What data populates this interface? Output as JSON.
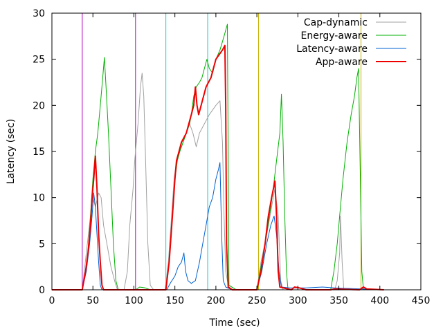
{
  "chart_data": {
    "type": "line",
    "xlabel": "Time (sec)",
    "ylabel": "Latency (sec)",
    "xlim": [
      0,
      450
    ],
    "ylim": [
      0,
      30
    ],
    "xticks": [
      "0",
      "50",
      "100",
      "150",
      "200",
      "250",
      "300",
      "350",
      "400",
      "450"
    ],
    "yticks": [
      "0",
      "5",
      "10",
      "15",
      "20",
      "25",
      "30"
    ],
    "grid": false,
    "legend_position": "top-right",
    "vertical_markers": [
      {
        "x": 37,
        "color": "#b000c0"
      },
      {
        "x": 102,
        "color": "#b000c0"
      },
      {
        "x": 139,
        "color": "#10c8d0"
      },
      {
        "x": 190,
        "color": "#10c8d0"
      },
      {
        "x": 252,
        "color": "#c8b000"
      },
      {
        "x": 377,
        "color": "#c8b000"
      }
    ],
    "series": [
      {
        "name": "Cap-dynamic",
        "color": "#a0a0a0",
        "width": 1,
        "points": [
          [
            0,
            0
          ],
          [
            37,
            0
          ],
          [
            42,
            4
          ],
          [
            47,
            8
          ],
          [
            50,
            10
          ],
          [
            53,
            9
          ],
          [
            57,
            10.5
          ],
          [
            60,
            10
          ],
          [
            63,
            7
          ],
          [
            67,
            5
          ],
          [
            72,
            2.5
          ],
          [
            77,
            0.8
          ],
          [
            80,
            0
          ],
          [
            88,
            0
          ],
          [
            92,
            2
          ],
          [
            95,
            7
          ],
          [
            99,
            11
          ],
          [
            101,
            14
          ],
          [
            103,
            16
          ],
          [
            105,
            18
          ],
          [
            108,
            22
          ],
          [
            110,
            23.5
          ],
          [
            112,
            21
          ],
          [
            114,
            15
          ],
          [
            117,
            5
          ],
          [
            120,
            0.5
          ],
          [
            124,
            0
          ],
          [
            138,
            0
          ],
          [
            142,
            3
          ],
          [
            146,
            8
          ],
          [
            149,
            12
          ],
          [
            152,
            14
          ],
          [
            156,
            15
          ],
          [
            160,
            16
          ],
          [
            164,
            17
          ],
          [
            168,
            18
          ],
          [
            172,
            17
          ],
          [
            176,
            15.5
          ],
          [
            180,
            17
          ],
          [
            186,
            18
          ],
          [
            192,
            19
          ],
          [
            200,
            20
          ],
          [
            205,
            20.5
          ],
          [
            208,
            16
          ],
          [
            210,
            8
          ],
          [
            212,
            2
          ],
          [
            215,
            0.5
          ],
          [
            225,
            0
          ],
          [
            250,
            0
          ],
          [
            255,
            3
          ],
          [
            262,
            6
          ],
          [
            268,
            9
          ],
          [
            272,
            11
          ],
          [
            276,
            8
          ],
          [
            279,
            1
          ],
          [
            282,
            0
          ],
          [
            345,
            0
          ],
          [
            348,
            1
          ],
          [
            351,
            4
          ],
          [
            352,
            8
          ],
          [
            354,
            3
          ],
          [
            356,
            0
          ],
          [
            405,
            0
          ]
        ]
      },
      {
        "name": "Energy-aware",
        "color": "#00b000",
        "width": 1,
        "points": [
          [
            0,
            0
          ],
          [
            37,
            0
          ],
          [
            41,
            2
          ],
          [
            44,
            4
          ],
          [
            47,
            8
          ],
          [
            50,
            12
          ],
          [
            53,
            15
          ],
          [
            56,
            17
          ],
          [
            59,
            20
          ],
          [
            62,
            23
          ],
          [
            64,
            25.2
          ],
          [
            66,
            22
          ],
          [
            69,
            17
          ],
          [
            72,
            11
          ],
          [
            75,
            5
          ],
          [
            78,
            1
          ],
          [
            81,
            0
          ],
          [
            102,
            0
          ],
          [
            107,
            0.3
          ],
          [
            114,
            0.2
          ],
          [
            120,
            0
          ],
          [
            139,
            0
          ],
          [
            143,
            3
          ],
          [
            147,
            8
          ],
          [
            150,
            12
          ],
          [
            153,
            14
          ],
          [
            156,
            15
          ],
          [
            160,
            16
          ],
          [
            164,
            17
          ],
          [
            168,
            18
          ],
          [
            170,
            19
          ],
          [
            173,
            21
          ],
          [
            176,
            22
          ],
          [
            180,
            22.5
          ],
          [
            183,
            23
          ],
          [
            186,
            24
          ],
          [
            189,
            25
          ],
          [
            192,
            24
          ],
          [
            196,
            23.5
          ],
          [
            200,
            25
          ],
          [
            205,
            26
          ],
          [
            210,
            27.5
          ],
          [
            214,
            28.8
          ],
          [
            216,
            0.5
          ],
          [
            225,
            0
          ],
          [
            250,
            0
          ],
          [
            256,
            3
          ],
          [
            262,
            6
          ],
          [
            267,
            9
          ],
          [
            270,
            11
          ],
          [
            274,
            14
          ],
          [
            278,
            17
          ],
          [
            280,
            21.2
          ],
          [
            282,
            16
          ],
          [
            284,
            8
          ],
          [
            286,
            2
          ],
          [
            288,
            0
          ],
          [
            340,
            0
          ],
          [
            344,
            2
          ],
          [
            348,
            5
          ],
          [
            351,
            8
          ],
          [
            355,
            12
          ],
          [
            360,
            16
          ],
          [
            365,
            19
          ],
          [
            369,
            21
          ],
          [
            372,
            23
          ],
          [
            374,
            24
          ],
          [
            376,
            13
          ],
          [
            378,
            2
          ],
          [
            380,
            0
          ],
          [
            405,
            0
          ]
        ]
      },
      {
        "name": "Latency-aware",
        "color": "#0060d0",
        "width": 1,
        "points": [
          [
            0,
            0
          ],
          [
            37,
            0
          ],
          [
            42,
            2
          ],
          [
            46,
            5
          ],
          [
            49,
            8
          ],
          [
            51,
            10.5
          ],
          [
            53,
            9
          ],
          [
            55,
            6
          ],
          [
            57,
            3
          ],
          [
            59,
            0.5
          ],
          [
            61,
            0
          ],
          [
            140,
            0
          ],
          [
            145,
            0.8
          ],
          [
            150,
            1.5
          ],
          [
            154,
            2.5
          ],
          [
            158,
            3
          ],
          [
            161,
            4
          ],
          [
            163,
            2
          ],
          [
            166,
            1
          ],
          [
            170,
            0.7
          ],
          [
            175,
            1
          ],
          [
            180,
            3
          ],
          [
            184,
            5
          ],
          [
            188,
            7
          ],
          [
            192,
            9
          ],
          [
            196,
            10
          ],
          [
            200,
            12
          ],
          [
            203,
            13
          ],
          [
            205,
            13.8
          ],
          [
            207,
            6
          ],
          [
            209,
            1
          ],
          [
            212,
            0.3
          ],
          [
            220,
            0
          ],
          [
            250,
            0
          ],
          [
            256,
            2
          ],
          [
            262,
            5
          ],
          [
            267,
            7
          ],
          [
            271,
            8
          ],
          [
            274,
            6
          ],
          [
            277,
            2
          ],
          [
            280,
            0.3
          ],
          [
            290,
            0.2
          ],
          [
            310,
            0.2
          ],
          [
            330,
            0.3
          ],
          [
            345,
            0.2
          ],
          [
            405,
            0
          ]
        ]
      },
      {
        "name": "App-aware",
        "color": "#ee0000",
        "width": 2,
        "points": [
          [
            0,
            0
          ],
          [
            37,
            0
          ],
          [
            41,
            2
          ],
          [
            44,
            4
          ],
          [
            47,
            7
          ],
          [
            49,
            10
          ],
          [
            51,
            12
          ],
          [
            53,
            14.5
          ],
          [
            55,
            11
          ],
          [
            57,
            6
          ],
          [
            59,
            3
          ],
          [
            61,
            0.5
          ],
          [
            63,
            0
          ],
          [
            139,
            0
          ],
          [
            143,
            3
          ],
          [
            147,
            8
          ],
          [
            150,
            12
          ],
          [
            152,
            14
          ],
          [
            155,
            15
          ],
          [
            158,
            16
          ],
          [
            161,
            16.5
          ],
          [
            164,
            17
          ],
          [
            167,
            18
          ],
          [
            170,
            19
          ],
          [
            173,
            20
          ],
          [
            175,
            22
          ],
          [
            177,
            20
          ],
          [
            179,
            19
          ],
          [
            182,
            20
          ],
          [
            185,
            21
          ],
          [
            188,
            22
          ],
          [
            191,
            22.5
          ],
          [
            194,
            23
          ],
          [
            197,
            24
          ],
          [
            200,
            25
          ],
          [
            204,
            25.5
          ],
          [
            208,
            26
          ],
          [
            211,
            26.5
          ],
          [
            212,
            20
          ],
          [
            213,
            5
          ],
          [
            215,
            0.3
          ],
          [
            220,
            0
          ],
          [
            250,
            0
          ],
          [
            255,
            2
          ],
          [
            260,
            5
          ],
          [
            264,
            8
          ],
          [
            268,
            10
          ],
          [
            272,
            11.8
          ],
          [
            274,
            8
          ],
          [
            276,
            2
          ],
          [
            278,
            0.3
          ],
          [
            292,
            0
          ],
          [
            296,
            0.3
          ],
          [
            302,
            0.2
          ],
          [
            310,
            0
          ],
          [
            340,
            0
          ],
          [
            345,
            0.1
          ],
          [
            375,
            0
          ],
          [
            380,
            0.3
          ],
          [
            384,
            0.1
          ],
          [
            405,
            0
          ]
        ]
      }
    ]
  }
}
